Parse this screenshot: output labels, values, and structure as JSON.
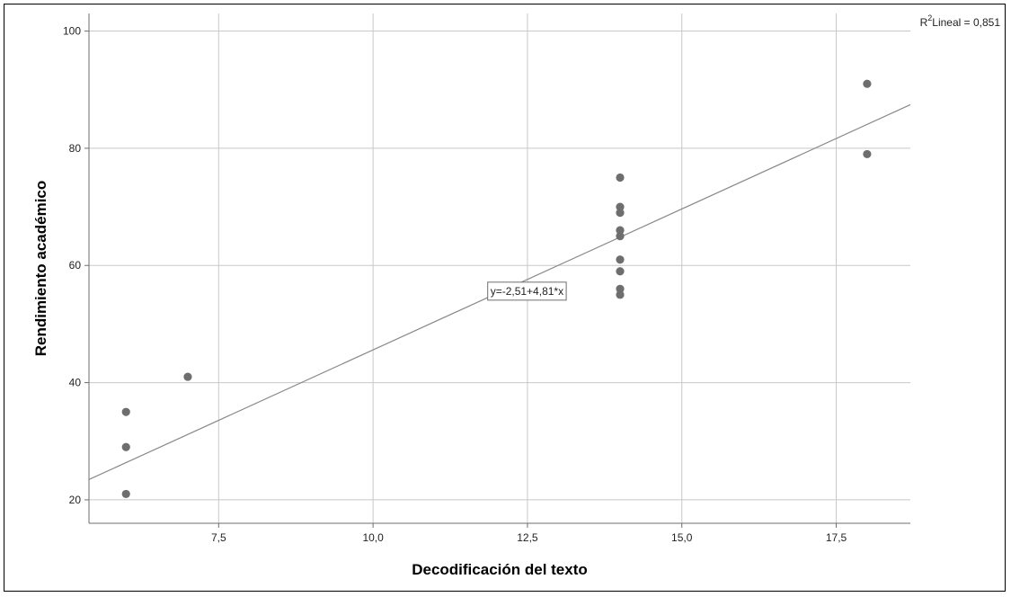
{
  "chart_data": {
    "type": "scatter",
    "xlabel": "Decodificación del texto",
    "ylabel": "Rendimiento académico",
    "xlim": [
      5.4,
      18.7
    ],
    "ylim": [
      16,
      103
    ],
    "x_ticks": [
      "7,5",
      "10,0",
      "12,5",
      "15,0",
      "17,5"
    ],
    "x_tick_values": [
      7.5,
      10.0,
      12.5,
      15.0,
      17.5
    ],
    "y_ticks": [
      "20",
      "40",
      "60",
      "80",
      "100"
    ],
    "y_tick_values": [
      20,
      40,
      60,
      80,
      100
    ],
    "grid": true,
    "points": [
      {
        "x": 6,
        "y": 35
      },
      {
        "x": 6,
        "y": 29
      },
      {
        "x": 6,
        "y": 21
      },
      {
        "x": 7,
        "y": 41
      },
      {
        "x": 14,
        "y": 75
      },
      {
        "x": 14,
        "y": 70
      },
      {
        "x": 14,
        "y": 69
      },
      {
        "x": 14,
        "y": 66
      },
      {
        "x": 14,
        "y": 65
      },
      {
        "x": 14,
        "y": 61
      },
      {
        "x": 14,
        "y": 59
      },
      {
        "x": 14,
        "y": 56
      },
      {
        "x": 14,
        "y": 55
      },
      {
        "x": 18,
        "y": 91
      },
      {
        "x": 18,
        "y": 79
      }
    ],
    "fit_line": {
      "intercept": -2.51,
      "slope": 4.81,
      "label_x": 11.9,
      "label_y": 55
    },
    "equation_label": "y=-2,51+4,81*x",
    "r2_label": "Lineal = 0,851",
    "r2_prefix": "R",
    "r2_sup": "2",
    "colors": {
      "points": "#6e6e6e",
      "line": "#888888",
      "grid": "#c8c8c8",
      "axis": "#6e6e6e"
    }
  }
}
